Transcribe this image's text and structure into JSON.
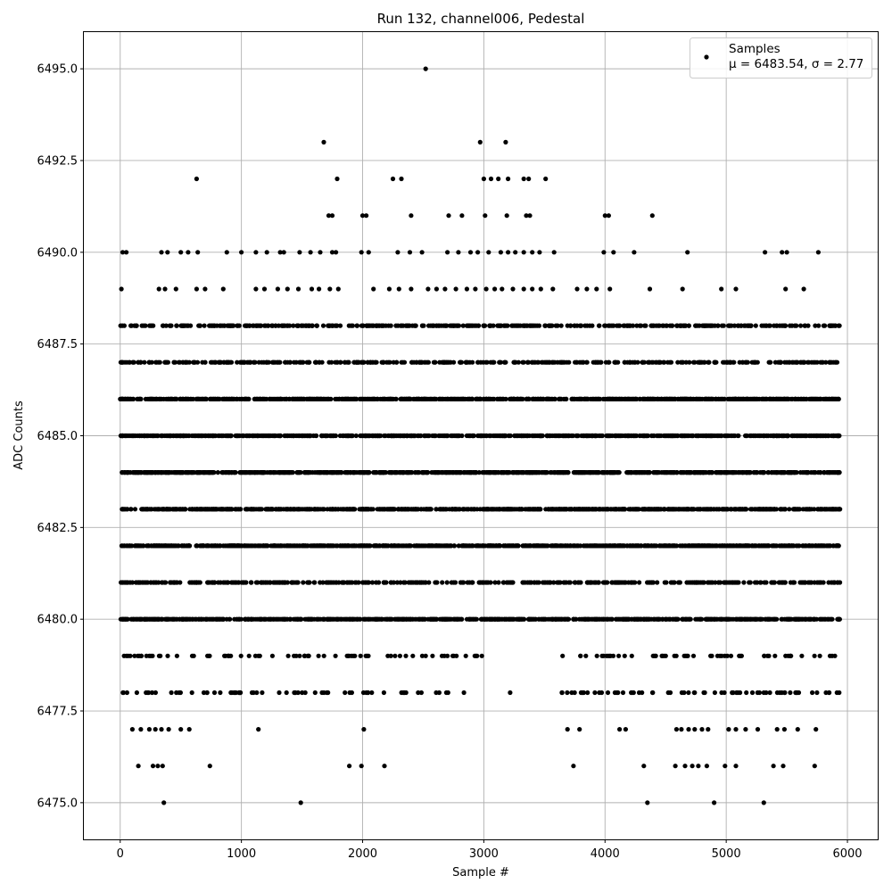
{
  "chart_data": {
    "type": "scatter",
    "title": "Run 132, channel006, Pedestal",
    "xlabel": "Sample #",
    "ylabel": "ADC Counts",
    "xlim": [
      -300,
      6250
    ],
    "ylim": [
      6474,
      6496
    ],
    "x_ticks": [
      0,
      1000,
      2000,
      3000,
      4000,
      5000,
      6000
    ],
    "x_tick_labels": [
      "0",
      "1000",
      "2000",
      "3000",
      "4000",
      "5000",
      "6000"
    ],
    "y_ticks": [
      6475.0,
      6477.5,
      6480.0,
      6482.5,
      6485.0,
      6487.5,
      6490.0,
      6492.5,
      6495.0
    ],
    "y_tick_labels": [
      "6475.0",
      "6477.5",
      "6480.0",
      "6482.5",
      "6485.0",
      "6487.5",
      "6490.0",
      "6492.5",
      "6495.0"
    ],
    "grid": true,
    "marker_color": "#000000",
    "legend": {
      "location": "top-right",
      "entries": [
        {
          "name": "Samples",
          "stats": "μ = 6483.54, σ = 2.77"
        }
      ]
    },
    "series": [
      {
        "name": "Samples",
        "x_range": [
          0,
          5940
        ],
        "levels": [
          {
            "y": 6495,
            "x": [
              2520
            ]
          },
          {
            "y": 6493,
            "x": [
              1680,
              2970,
              3180
            ]
          },
          {
            "y": 6492,
            "x": [
              630,
              1790,
              2250,
              2320,
              3000,
              3060,
              3120,
              3200,
              3330,
              3370,
              3510
            ]
          },
          {
            "y": 6491,
            "x": [
              1720,
              1750,
              2000,
              2030,
              2400,
              2710,
              2820,
              3010,
              3190,
              3350,
              3380,
              4000,
              4030,
              4390
            ]
          },
          {
            "y": 6490,
            "x": [
              20,
              50,
              340,
              390,
              500,
              560,
              640,
              880,
              1000,
              1120,
              1210,
              1320,
              1350,
              1480,
              1570,
              1650,
              1750,
              1780,
              1990,
              2050,
              2290,
              2390,
              2490,
              2700,
              2790,
              2890,
              2950,
              3040,
              3140,
              3200,
              3260,
              3330,
              3400,
              3460,
              3580,
              3990,
              4070,
              4240,
              4680,
              5320,
              5460,
              5500,
              5760
            ]
          },
          {
            "y": 6489,
            "x": [
              10,
              320,
              370,
              460,
              630,
              700,
              850,
              1120,
              1190,
              1300,
              1380,
              1470,
              1580,
              1640,
              1730,
              1800,
              2090,
              2220,
              2300,
              2400,
              2540,
              2610,
              2680,
              2770,
              2860,
              2930,
              3020,
              3090,
              3150,
              3240,
              3330,
              3400,
              3470,
              3570,
              3770,
              3850,
              3930,
              4040,
              4370,
              4640,
              4960,
              5080,
              5490,
              5640
            ]
          },
          {
            "y": 6488,
            "x": "band",
            "density": "high"
          },
          {
            "y": 6487,
            "x": "band",
            "density": "high"
          },
          {
            "y": 6486,
            "x": "band",
            "density": "very-high"
          },
          {
            "y": 6485,
            "x": "band",
            "density": "very-high"
          },
          {
            "y": 6484,
            "x": "band",
            "density": "very-high"
          },
          {
            "y": 6483,
            "x": "band",
            "density": "very-high"
          },
          {
            "y": 6482,
            "x": "band",
            "density": "very-high"
          },
          {
            "y": 6481,
            "x": "band",
            "density": "high"
          },
          {
            "y": 6480,
            "x": "band",
            "density": "very-high"
          },
          {
            "y": 6479,
            "x": "band",
            "density": "medium"
          },
          {
            "y": 6478,
            "x": "band",
            "density": "medium"
          },
          {
            "y": 6477,
            "x": [
              100,
              170,
              240,
              290,
              340,
              400,
              500,
              570,
              1140,
              2010,
              3690,
              3790,
              4120,
              4170,
              4590,
              4630,
              4690,
              4740,
              4800,
              4850,
              5020,
              5080,
              5160,
              5260,
              5420,
              5480,
              5590,
              5740
            ]
          },
          {
            "y": 6476,
            "x": [
              150,
              270,
              310,
              350,
              740,
              1890,
              1990,
              2180,
              3740,
              4320,
              4580,
              4660,
              4720,
              4770,
              4840,
              4990,
              5080,
              5390,
              5470,
              5730
            ]
          },
          {
            "y": 6475,
            "x": [
              360,
              1490,
              4350,
              4900,
              5310
            ]
          }
        ]
      }
    ]
  }
}
